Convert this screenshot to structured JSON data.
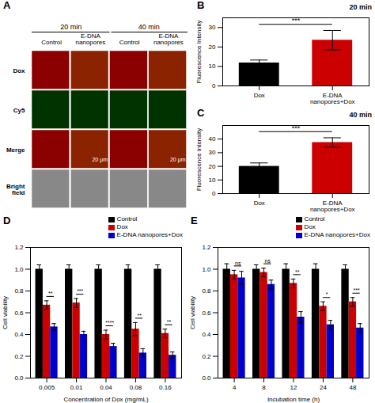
{
  "chart_data": [
    {
      "type": "image_grid",
      "annotations": [
        "A"
      ],
      "rows": [
        "Dox",
        "Cy5",
        "Merge",
        "Bright\nfield"
      ],
      "column_groups": [
        "20 min",
        "40 min"
      ],
      "columns": [
        "Control",
        "E-DNA\nnanopores",
        "Control",
        "E-DNA\nnanopores"
      ],
      "colors": [
        [
          "#8b0000",
          "#8b2200",
          "#8b0000",
          "#8b2200"
        ],
        [
          "#003300",
          "#003300",
          "#003300",
          "#003300"
        ],
        [
          "#8b0000",
          "#8b2200",
          "#8b0000",
          "#8b2200"
        ],
        [
          "#888888",
          "#888888",
          "#888888",
          "#888888"
        ]
      ],
      "scale_labels": [
        "20 μm",
        "20 μm"
      ]
    },
    {
      "type": "bar",
      "title": "20 min",
      "annotations": [
        "B"
      ],
      "categories": [
        "Dox",
        "E-DNA\nnanopores+Dox"
      ],
      "values": [
        11.8,
        23.5
      ],
      "errors": [
        1.5,
        5.0
      ],
      "colors": [
        "#000000",
        "#cc0000"
      ],
      "ylabel": "Fluorescence Intensity",
      "ylim": [
        0,
        35
      ],
      "yticks": [
        0,
        10,
        20,
        30
      ],
      "significance": [
        "***"
      ]
    },
    {
      "type": "bar",
      "title": "40 min",
      "annotations": [
        "C"
      ],
      "categories": [
        "Dox",
        "E-DNA\nnanopores+Dox"
      ],
      "values": [
        20.0,
        37.5
      ],
      "errors": [
        2.5,
        3.5
      ],
      "colors": [
        "#000000",
        "#cc0000"
      ],
      "ylabel": "Fluorescence intensity",
      "ylim": [
        0,
        50
      ],
      "yticks": [
        0,
        10,
        20,
        30,
        40
      ],
      "significance": [
        "***"
      ]
    },
    {
      "type": "bar",
      "annotations": [
        "D"
      ],
      "categories": [
        "0.005",
        "0.01",
        "0.04",
        "0.08",
        "0.16"
      ],
      "series": [
        {
          "name": "Control",
          "color": "#000000",
          "values": [
            1.0,
            1.0,
            1.0,
            1.0,
            1.0
          ],
          "errors": [
            0.04,
            0.04,
            0.04,
            0.04,
            0.04
          ]
        },
        {
          "name": "Dox",
          "color": "#cc0000",
          "values": [
            0.67,
            0.69,
            0.4,
            0.45,
            0.41
          ],
          "errors": [
            0.04,
            0.04,
            0.04,
            0.06,
            0.04
          ]
        },
        {
          "name": "E-DNA nanopores+Dox",
          "color": "#0000cc",
          "values": [
            0.47,
            0.4,
            0.29,
            0.23,
            0.21
          ],
          "errors": [
            0.03,
            0.03,
            0.03,
            0.04,
            0.03
          ]
        }
      ],
      "xlabel": "Concentration of Dox (mg/mL)",
      "ylabel": "Cell viability",
      "ylim": [
        0.0,
        1.2
      ],
      "yticks": [
        {
          "value": 0,
          "label": "0.0"
        },
        0.2,
        0.4,
        0.6,
        0.8,
        {
          "value": 1,
          "label": "1.0"
        },
        1.2
      ],
      "significance": [
        "**",
        "***",
        "****",
        "**",
        "**"
      ],
      "legend": "upper right"
    },
    {
      "type": "bar",
      "annotations": [
        "E"
      ],
      "categories": [
        "4",
        "8",
        "12",
        "24",
        "48"
      ],
      "series": [
        {
          "name": "Control",
          "color": "#000000",
          "values": [
            1.0,
            1.0,
            1.0,
            1.0,
            1.0
          ],
          "errors": [
            0.05,
            0.04,
            0.05,
            0.05,
            0.04
          ]
        },
        {
          "name": "Dox",
          "color": "#cc0000",
          "values": [
            0.95,
            0.97,
            0.87,
            0.66,
            0.7
          ],
          "errors": [
            0.04,
            0.04,
            0.04,
            0.04,
            0.04
          ]
        },
        {
          "name": "E-DNA nanopores+Dox",
          "color": "#0000cc",
          "values": [
            0.92,
            0.86,
            0.56,
            0.49,
            0.46
          ],
          "errors": [
            0.06,
            0.04,
            0.05,
            0.04,
            0.04
          ]
        }
      ],
      "xlabel": "Incubation time (h)",
      "ylabel": "Cell viability",
      "ylim": [
        0.0,
        1.2
      ],
      "yticks": [
        {
          "value": 0,
          "label": "0.0"
        },
        0.2,
        0.4,
        0.6,
        0.8,
        {
          "value": 1,
          "label": "1.0"
        },
        1.2
      ],
      "significance": [
        "ns",
        "ns",
        "**",
        "*",
        "***"
      ],
      "legend": "upper right"
    }
  ]
}
